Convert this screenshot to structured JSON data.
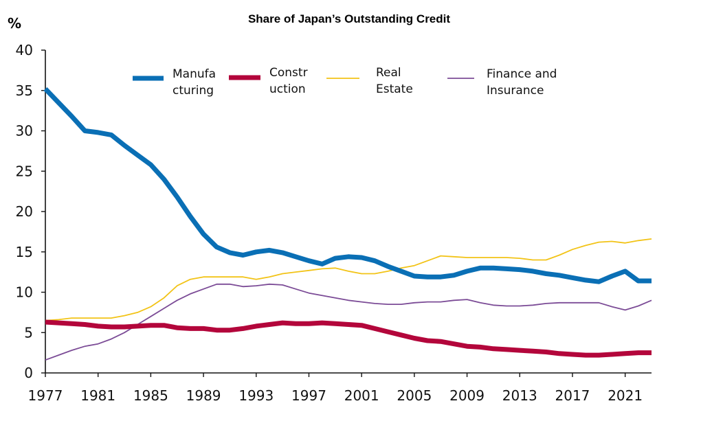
{
  "chart_data": {
    "type": "line",
    "title": "Share of Japan’s Outstanding Credit",
    "ylabel": "%",
    "xlabel": "",
    "ylim": [
      0,
      40
    ],
    "xlim": [
      1977,
      2023
    ],
    "yticks": [
      0,
      5,
      10,
      15,
      20,
      25,
      30,
      35,
      40
    ],
    "xticks": [
      1977,
      1981,
      1985,
      1989,
      1993,
      1997,
      2001,
      2005,
      2009,
      2013,
      2017,
      2021
    ],
    "grid": false,
    "legend_position": "top",
    "series": [
      {
        "name": "Manufacturing",
        "legend_lines": [
          "Manufa",
          "cturing"
        ],
        "color": "#0a6fb5",
        "weight": "thick",
        "x": [
          1977,
          1978,
          1979,
          1980,
          1981,
          1982,
          1983,
          1984,
          1985,
          1986,
          1987,
          1988,
          1989,
          1990,
          1991,
          1992,
          1993,
          1994,
          1995,
          1996,
          1997,
          1998,
          1999,
          2000,
          2001,
          2002,
          2003,
          2004,
          2005,
          2006,
          2007,
          2008,
          2009,
          2010,
          2011,
          2012,
          2013,
          2014,
          2015,
          2016,
          2017,
          2018,
          2019,
          2020,
          2021,
          2022,
          2023
        ],
        "values": [
          35.2,
          33.5,
          31.8,
          30.0,
          29.8,
          29.5,
          28.2,
          27.0,
          25.8,
          24.0,
          21.8,
          19.4,
          17.2,
          15.6,
          14.9,
          14.6,
          15.0,
          15.2,
          14.9,
          14.4,
          13.9,
          13.5,
          14.2,
          14.4,
          14.3,
          13.9,
          13.2,
          12.6,
          12.0,
          11.9,
          11.9,
          12.1,
          12.6,
          13.0,
          13.0,
          12.9,
          12.8,
          12.6,
          12.3,
          12.1,
          11.8,
          11.5,
          11.3,
          12.0,
          12.6,
          11.4,
          11.4
        ]
      },
      {
        "name": "Construction",
        "legend_lines": [
          "Constr",
          "uction"
        ],
        "color": "#b3063b",
        "weight": "thick",
        "x": [
          1977,
          1978,
          1979,
          1980,
          1981,
          1982,
          1983,
          1984,
          1985,
          1986,
          1987,
          1988,
          1989,
          1990,
          1991,
          1992,
          1993,
          1994,
          1995,
          1996,
          1997,
          1998,
          1999,
          2000,
          2001,
          2002,
          2003,
          2004,
          2005,
          2006,
          2007,
          2008,
          2009,
          2010,
          2011,
          2012,
          2013,
          2014,
          2015,
          2016,
          2017,
          2018,
          2019,
          2020,
          2021,
          2022,
          2023
        ],
        "values": [
          6.3,
          6.2,
          6.1,
          6.0,
          5.8,
          5.7,
          5.7,
          5.8,
          5.9,
          5.9,
          5.6,
          5.5,
          5.5,
          5.3,
          5.3,
          5.5,
          5.8,
          6.0,
          6.2,
          6.1,
          6.1,
          6.2,
          6.1,
          6.0,
          5.9,
          5.5,
          5.1,
          4.7,
          4.3,
          4.0,
          3.9,
          3.6,
          3.3,
          3.2,
          3.0,
          2.9,
          2.8,
          2.7,
          2.6,
          2.4,
          2.3,
          2.2,
          2.2,
          2.3,
          2.4,
          2.5,
          2.5
        ]
      },
      {
        "name": "Real Estate",
        "legend_lines": [
          "Real",
          "Estate"
        ],
        "color": "#f2c316",
        "weight": "thin",
        "x": [
          1977,
          1978,
          1979,
          1980,
          1981,
          1982,
          1983,
          1984,
          1985,
          1986,
          1987,
          1988,
          1989,
          1990,
          1991,
          1992,
          1993,
          1994,
          1995,
          1996,
          1997,
          1998,
          1999,
          2000,
          2001,
          2002,
          2003,
          2004,
          2005,
          2006,
          2007,
          2008,
          2009,
          2010,
          2011,
          2012,
          2013,
          2014,
          2015,
          2016,
          2017,
          2018,
          2019,
          2020,
          2021,
          2022,
          2023
        ],
        "values": [
          6.5,
          6.6,
          6.8,
          6.8,
          6.8,
          6.8,
          7.1,
          7.5,
          8.2,
          9.3,
          10.8,
          11.6,
          11.9,
          11.9,
          11.9,
          11.9,
          11.6,
          11.9,
          12.3,
          12.5,
          12.7,
          12.9,
          13.0,
          12.6,
          12.3,
          12.3,
          12.6,
          13.0,
          13.3,
          13.9,
          14.5,
          14.4,
          14.3,
          14.3,
          14.3,
          14.3,
          14.2,
          14.0,
          14.0,
          14.6,
          15.3,
          15.8,
          16.2,
          16.3,
          16.1,
          16.4,
          16.6
        ]
      },
      {
        "name": "Finance and Insurance",
        "legend_lines": [
          "Finance and",
          "Insurance"
        ],
        "color": "#7b4b96",
        "weight": "thin",
        "x": [
          1977,
          1978,
          1979,
          1980,
          1981,
          1982,
          1983,
          1984,
          1985,
          1986,
          1987,
          1988,
          1989,
          1990,
          1991,
          1992,
          1993,
          1994,
          1995,
          1996,
          1997,
          1998,
          1999,
          2000,
          2001,
          2002,
          2003,
          2004,
          2005,
          2006,
          2007,
          2008,
          2009,
          2010,
          2011,
          2012,
          2013,
          2014,
          2015,
          2016,
          2017,
          2018,
          2019,
          2020,
          2021,
          2022,
          2023
        ],
        "values": [
          1.6,
          2.2,
          2.8,
          3.3,
          3.6,
          4.2,
          5.0,
          6.0,
          7.0,
          8.0,
          9.0,
          9.8,
          10.4,
          11.0,
          11.0,
          10.7,
          10.8,
          11.0,
          10.9,
          10.4,
          9.9,
          9.6,
          9.3,
          9.0,
          8.8,
          8.6,
          8.5,
          8.5,
          8.7,
          8.8,
          8.8,
          9.0,
          9.1,
          8.7,
          8.4,
          8.3,
          8.3,
          8.4,
          8.6,
          8.7,
          8.7,
          8.7,
          8.7,
          8.2,
          7.8,
          8.3,
          9.0
        ]
      }
    ]
  }
}
